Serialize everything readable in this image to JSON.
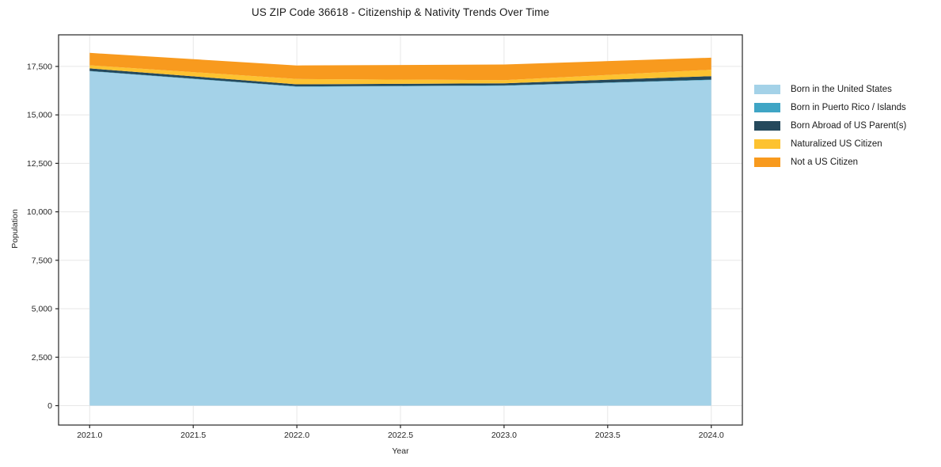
{
  "chart_data": {
    "type": "area",
    "stacked": true,
    "title": "US ZIP Code 36618 - Citizenship & Nativity Trends Over Time",
    "xlabel": "Year",
    "ylabel": "Population",
    "x": [
      2021,
      2022,
      2023,
      2024
    ],
    "series": [
      {
        "name": "Born in the United States",
        "color": "#a4d2e8",
        "values": [
          17250,
          16450,
          16500,
          16800
        ]
      },
      {
        "name": "Born in Puerto Rico / Islands",
        "color": "#3fa5c5",
        "values": [
          20,
          20,
          20,
          20
        ]
      },
      {
        "name": "Born Abroad of US Parent(s)",
        "color": "#25495c",
        "values": [
          130,
          110,
          110,
          180
        ]
      },
      {
        "name": "Naturalized US Citizen",
        "color": "#fdc230",
        "values": [
          160,
          270,
          160,
          330
        ]
      },
      {
        "name": "Not a US Citizen",
        "color": "#f89a1e",
        "values": [
          640,
          700,
          810,
          620
        ]
      }
    ],
    "xlim": [
      2020.85,
      2024.15
    ],
    "ylim": [
      -1000,
      19130
    ],
    "xticks": [
      2021.0,
      2021.5,
      2022.0,
      2022.5,
      2023.0,
      2023.5,
      2024.0
    ],
    "xtick_labels": [
      "2021.0",
      "2021.5",
      "2022.0",
      "2022.5",
      "2023.0",
      "2023.5",
      "2024.0"
    ],
    "yticks": [
      0,
      2500,
      5000,
      7500,
      10000,
      12500,
      15000,
      17500
    ],
    "ytick_labels": [
      "0",
      "2,500",
      "5,000",
      "7,500",
      "10,000",
      "12,500",
      "15,000",
      "17,500"
    ],
    "grid": true,
    "legend_position": "upper right, outside plot",
    "colors": {
      "grid": "#e7e7e7",
      "frame": "#262626",
      "tick_text": "#262626",
      "background": "#ffffff"
    }
  }
}
